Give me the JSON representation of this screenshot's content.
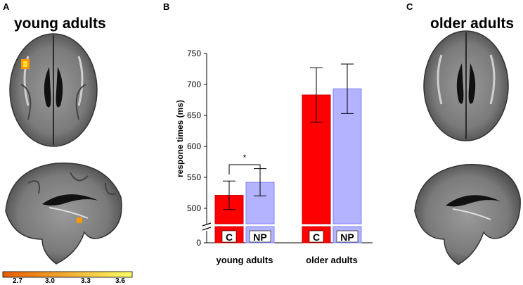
{
  "panels": {
    "a": {
      "letter": "A",
      "title": "young adults"
    },
    "b": {
      "letter": "B"
    },
    "c": {
      "letter": "C",
      "title": "older adults"
    }
  },
  "colorbar": {
    "ticks": [
      "2.7",
      "3.0",
      "3.3",
      "3.6"
    ],
    "colors": [
      "#e65c00",
      "#ffff66"
    ]
  },
  "chart_data": {
    "type": "bar",
    "ylabel": "respone times (ms)",
    "ylim": [
      475,
      750
    ],
    "yticks": [
      500,
      550,
      600,
      650,
      700,
      750
    ],
    "axis_break_label": "0",
    "groups": [
      "young adults",
      "older adults"
    ],
    "series": [
      {
        "name": "C",
        "color": "#ff0000",
        "values": [
          521,
          683
        ],
        "errors": [
          23,
          44
        ]
      },
      {
        "name": "NP",
        "color": "#b3b3ff",
        "values": [
          542,
          693
        ],
        "errors": [
          22,
          40
        ]
      }
    ],
    "significance": [
      {
        "group": "young adults",
        "label": "*"
      }
    ]
  }
}
